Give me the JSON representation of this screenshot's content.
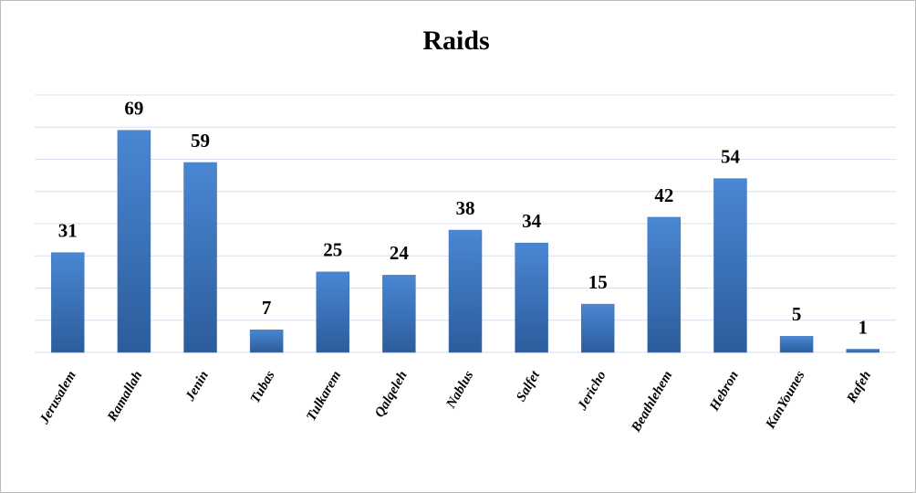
{
  "chart_data": {
    "type": "bar",
    "title": "Raids",
    "categories": [
      "Jerusalem",
      "Ramallah",
      "Jenin",
      "Tubas",
      "Tulkarem",
      "Qalqeleh",
      "Nablus",
      "Salfet",
      "Jericho",
      "Beathlehem",
      "Hebron",
      "KanYounes",
      "Rafeh"
    ],
    "values": [
      31,
      69,
      59,
      7,
      25,
      24,
      38,
      34,
      15,
      42,
      54,
      5,
      1
    ],
    "color": "#3a72bd",
    "ylim": [
      0,
      80
    ],
    "yticks": [
      0,
      10,
      20,
      30,
      40,
      50,
      60,
      70,
      80
    ],
    "grid": true
  }
}
